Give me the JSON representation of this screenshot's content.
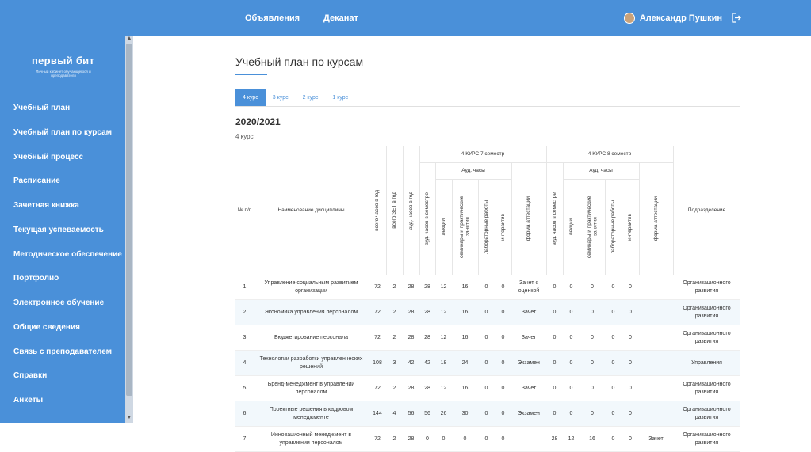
{
  "topnav": {
    "announcements": "Объявления",
    "dean": "Деканат"
  },
  "user": {
    "name": "Александр Пушкин"
  },
  "logo": {
    "title": "первый бит",
    "subtitle": "Личный кабинет обучающегося и преподавателя"
  },
  "sidebar": {
    "items": [
      "Учебный план",
      "Учебный план по курсам",
      "Учебный процесс",
      "Расписание",
      "Зачетная книжка",
      "Текущая успеваемость",
      "Методическое обеспечение",
      "Портфолио",
      "Электронное обучение",
      "Общие сведения",
      "Связь с преподавателем",
      "Справки",
      "Анкеты"
    ]
  },
  "page": {
    "title": "Учебный план по курсам",
    "year": "2020/2021",
    "course": "4 курс"
  },
  "tabs": [
    "4 курс",
    "3 курс",
    "2 курс",
    "1 курс"
  ],
  "table": {
    "headers": {
      "num": "№ п/п",
      "name": "Наименование дисциплины",
      "total_hours": "всего часов в год",
      "total_zet": "всего ЗЕТ в год",
      "aud_hours": "ауд. часов в год",
      "sem7": "4 КУРС 7 семестр",
      "sem8": "4 КУРС 8 семестр",
      "aud_group": "Ауд. часы",
      "aud_sem": "ауд. часов в семестре",
      "lectures": "лекции",
      "seminars": "семинары и практические занятия",
      "labs": "лабораторные работы",
      "interactive": "интерактив",
      "attestation": "форма аттестации",
      "department": "Подразделение"
    },
    "rows": [
      [
        "1",
        "Управление социальным развитием организации",
        "72",
        "2",
        "28",
        "28",
        "12",
        "16",
        "0",
        "0",
        "Зачет с оценкой",
        "0",
        "0",
        "0",
        "0",
        "0",
        "",
        "Организационного развития"
      ],
      [
        "2",
        "Экономика управления персоналом",
        "72",
        "2",
        "28",
        "28",
        "12",
        "16",
        "0",
        "0",
        "Зачет",
        "0",
        "0",
        "0",
        "0",
        "0",
        "",
        "Организационного развития"
      ],
      [
        "3",
        "Бюджетирование персонала",
        "72",
        "2",
        "28",
        "28",
        "12",
        "16",
        "0",
        "0",
        "Зачет",
        "0",
        "0",
        "0",
        "0",
        "0",
        "",
        "Организационного развития"
      ],
      [
        "4",
        "Технологии разработки управленческих решений",
        "108",
        "3",
        "42",
        "42",
        "18",
        "24",
        "0",
        "0",
        "Экзамен",
        "0",
        "0",
        "0",
        "0",
        "0",
        "",
        "Управления"
      ],
      [
        "5",
        "Бренд-менеджмент в управлении персоналом",
        "72",
        "2",
        "28",
        "28",
        "12",
        "16",
        "0",
        "0",
        "Зачет",
        "0",
        "0",
        "0",
        "0",
        "0",
        "",
        "Организационного развития"
      ],
      [
        "6",
        "Проектные решения в кадровом менеджменте",
        "144",
        "4",
        "56",
        "56",
        "26",
        "30",
        "0",
        "0",
        "Экзамен",
        "0",
        "0",
        "0",
        "0",
        "0",
        "",
        "Организационного развития"
      ],
      [
        "7",
        "Инновационный менеджмент в управлении персоналом",
        "72",
        "2",
        "28",
        "0",
        "0",
        "0",
        "0",
        "0",
        "",
        "28",
        "12",
        "16",
        "0",
        "0",
        "Зачет",
        "Организационного развития"
      ]
    ]
  },
  "colors": {
    "primary": "#4a90d9",
    "row_alt": "#f2f8fc"
  }
}
